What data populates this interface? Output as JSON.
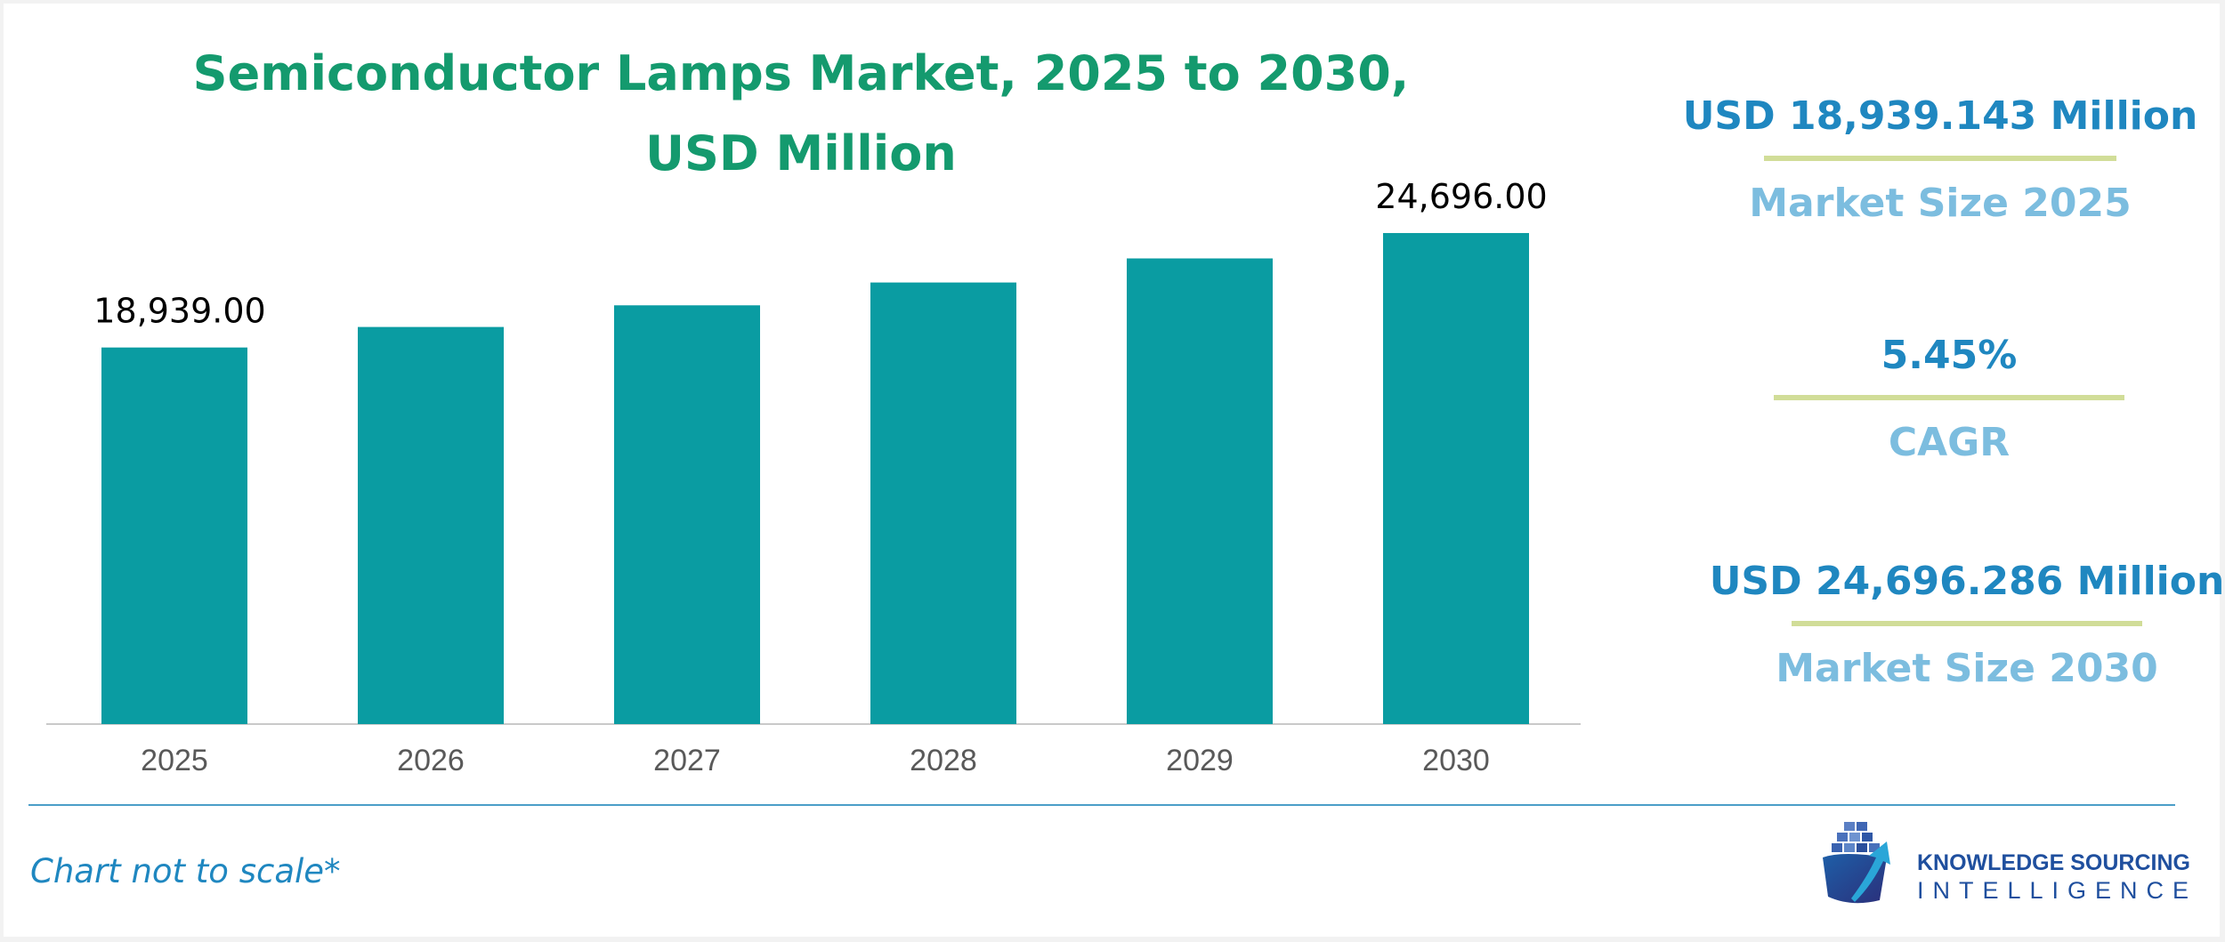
{
  "chart_data": {
    "type": "bar",
    "title": "Semiconductor Lamps Market, 2025 to 2030, USD Million",
    "title_lines": [
      "Semiconductor Lamps Market, 2025 to 2030,",
      "USD Million"
    ],
    "categories": [
      "2025",
      "2026",
      "2027",
      "2028",
      "2029",
      "2030"
    ],
    "values": [
      18939.0,
      19971.0,
      21060.0,
      22208.0,
      23419.0,
      24696.0
    ],
    "data_labels": [
      "18,939.00",
      "",
      "",
      "",
      "",
      "24,696.00"
    ],
    "xlabel": "",
    "ylabel": "",
    "ylim": [
      0,
      25500
    ],
    "grid": false,
    "bar_color": "#0a9ca2"
  },
  "stats": [
    {
      "value": "USD 18,939.143 Million",
      "label": "Market Size 2025"
    },
    {
      "value": "5.45%",
      "label": "CAGR"
    },
    {
      "value": "USD 24,696.286 Million",
      "label": "Market Size 2030"
    }
  ],
  "footnote": "Chart not to scale*",
  "logo": {
    "icon": "ship-arrow-logo-icon",
    "line1": "KNOWLEDGE SOURCING",
    "line2": "INTELLIGENCE"
  },
  "colors": {
    "title": "#149a6e",
    "stat_value": "#1f87c0",
    "stat_label": "#7cbddf",
    "stat_rule": "#d1dd98",
    "footer_rule": "#4b9ec8"
  }
}
